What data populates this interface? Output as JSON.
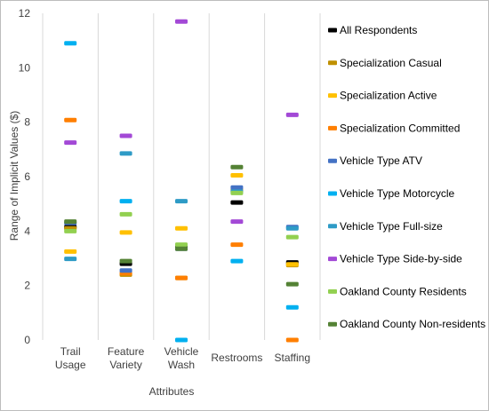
{
  "chart_data": {
    "type": "scatter",
    "title": "",
    "xlabel": "Attributes",
    "ylabel": "Range of Implicit Values ($)",
    "ylim": [
      0,
      12
    ],
    "yticks": [
      0,
      2,
      4,
      6,
      8,
      10,
      12
    ],
    "grid": "vertical",
    "legend_position": "right",
    "categories": [
      [
        "Trail",
        "Usage"
      ],
      [
        "Feature",
        "Variety"
      ],
      [
        "Vehicle",
        "Wash"
      ],
      [
        "Restrooms"
      ],
      [
        "Staffing"
      ]
    ],
    "series": [
      {
        "name": "All Respondents",
        "color": "#000000",
        "values": [
          4.15,
          2.8,
          3.4,
          5.05,
          2.85
        ]
      },
      {
        "name": "Specialization Casual",
        "color": "#bf9000",
        "values": [
          4.1,
          2.4,
          2.28,
          5.5,
          2.75
        ]
      },
      {
        "name": "Specialization Active",
        "color": "#ffc000",
        "values": [
          3.25,
          3.95,
          4.1,
          6.05,
          2.78
        ]
      },
      {
        "name": "Specialization Committed",
        "color": "#ff7f00",
        "values": [
          8.08,
          2.45,
          2.28,
          3.5,
          0.0
        ]
      },
      {
        "name": "Vehicle Type ATV",
        "color": "#4472c4",
        "values": [
          4.3,
          2.55,
          3.35,
          5.6,
          4.15
        ]
      },
      {
        "name": "Vehicle Type Motorcycle",
        "color": "#00b0f0",
        "values": [
          10.9,
          5.1,
          0.0,
          2.9,
          1.2
        ]
      },
      {
        "name": "Vehicle Type Full-size",
        "color": "#2e9bc6",
        "values": [
          2.98,
          6.85,
          5.1,
          5.45,
          4.1
        ]
      },
      {
        "name": "Vehicle Type Side-by-side",
        "color": "#a349d6",
        "values": [
          7.25,
          7.5,
          11.7,
          4.35,
          8.27
        ]
      },
      {
        "name": "Oakland County Residents",
        "color": "#92d050",
        "values": [
          4.0,
          4.62,
          3.5,
          5.4,
          3.78
        ]
      },
      {
        "name": "Oakland County Non-residents",
        "color": "#548235",
        "values": [
          4.35,
          2.9,
          3.35,
          6.35,
          2.05
        ]
      }
    ]
  }
}
